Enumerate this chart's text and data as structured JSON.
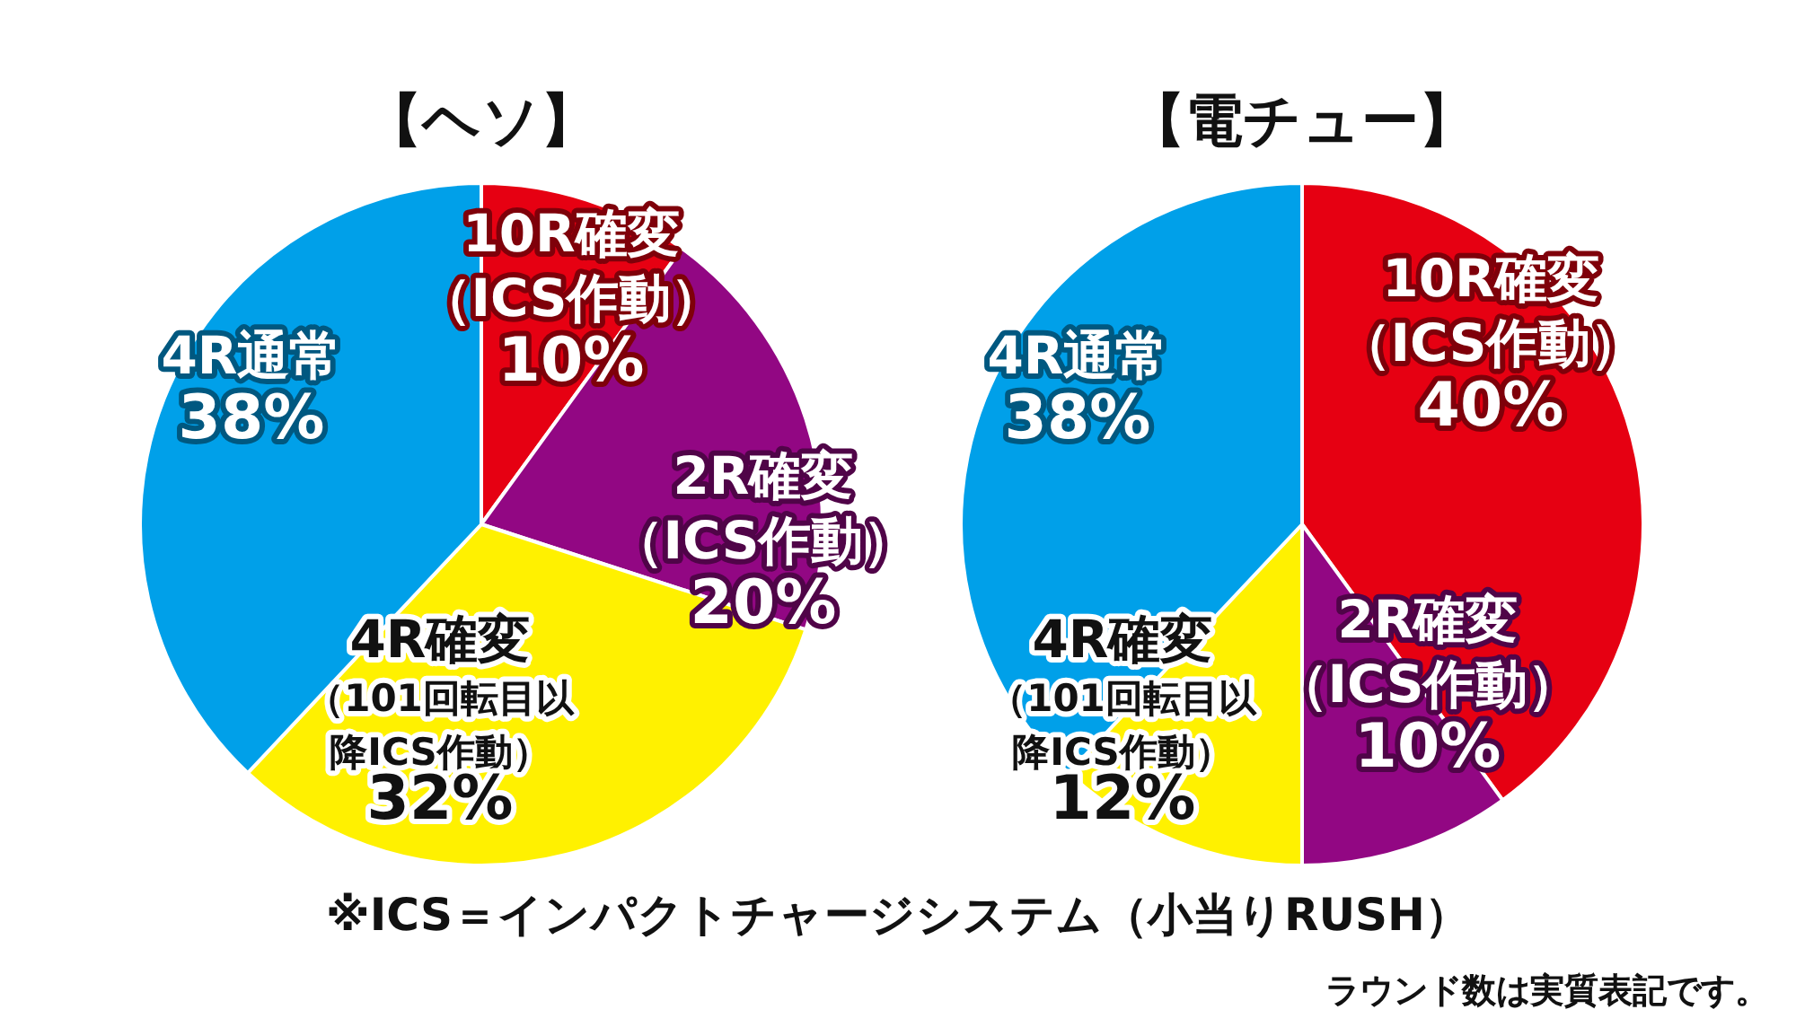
{
  "chart_data": [
    {
      "type": "pie",
      "title": "【ヘソ】",
      "categories": [
        "10R確変（ICS作動）",
        "2R確変（ICS作動）",
        "4R確変（101回転目以降ICS作動）",
        "4R通常"
      ],
      "values": [
        10,
        20,
        32,
        38
      ],
      "value_labels": [
        "10%",
        "20%",
        "32%",
        "38%"
      ],
      "colors": [
        "#e60012",
        "#920783",
        "#fff100",
        "#00a0e9"
      ]
    },
    {
      "type": "pie",
      "title": "【電チュー】",
      "categories": [
        "10R確変（ICS作動）",
        "2R確変（ICS作動）",
        "4R確変（101回転目以降ICS作動）",
        "4R通常"
      ],
      "values": [
        40,
        10,
        12,
        38
      ],
      "value_labels": [
        "40%",
        "10%",
        "12%",
        "38%"
      ],
      "colors": [
        "#e60012",
        "#920783",
        "#fff100",
        "#00a0e9"
      ],
      "annotations": [
        "※ICS＝インパクトチャージシステム（小当りRUSH）",
        "ラウンド数は実質表記です。"
      ]
    }
  ]
}
